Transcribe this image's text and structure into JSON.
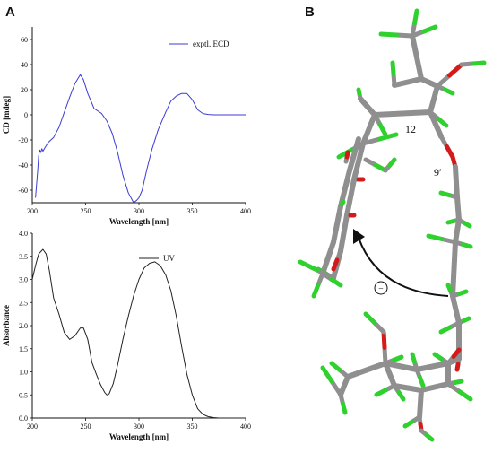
{
  "panel_labels": {
    "a": "A",
    "b": "B"
  },
  "chart_data": [
    {
      "type": "line",
      "xlabel": "Wavelength [nm]",
      "ylabel": "CD [mdeg]",
      "xlim": [
        200,
        400
      ],
      "ylim": [
        -70,
        70
      ],
      "xticks": [
        200,
        250,
        300,
        350,
        400
      ],
      "yticks": [
        -60,
        -40,
        -20,
        0,
        20,
        40,
        60
      ],
      "legend": "top-right",
      "series": [
        {
          "name": "exptl. ECD",
          "color": "#3b3bd6",
          "x": [
            203,
            205,
            206,
            207,
            208,
            209,
            210,
            212,
            215,
            220,
            225,
            230,
            235,
            240,
            245,
            248,
            252,
            258,
            265,
            270,
            275,
            280,
            285,
            290,
            295,
            298,
            300,
            303,
            307,
            312,
            318,
            325,
            330,
            335,
            340,
            345,
            350,
            355,
            360,
            365,
            370,
            380,
            390,
            400
          ],
          "y": [
            -66,
            -45,
            -33,
            -28,
            -30,
            -27,
            -29,
            -26,
            -22,
            -18,
            -10,
            2,
            14,
            25,
            32,
            28,
            17,
            5,
            1,
            -5,
            -15,
            -30,
            -48,
            -62,
            -70,
            -68,
            -66,
            -60,
            -45,
            -28,
            -12,
            2,
            11,
            15,
            17,
            17,
            12,
            4,
            1,
            0.3,
            0,
            0,
            0,
            0
          ]
        }
      ]
    },
    {
      "type": "line",
      "xlabel": "Wavelength [nm]",
      "ylabel": "Absorbance",
      "xlim": [
        200,
        400
      ],
      "ylim": [
        0,
        4
      ],
      "xticks": [
        200,
        250,
        300,
        350,
        400
      ],
      "yticks": [
        0.0,
        0.5,
        1.0,
        1.5,
        2.0,
        2.5,
        3.0,
        3.5,
        4.0
      ],
      "ytick_labels": [
        "0.0",
        "0.5",
        "1.0",
        "1.5",
        "2.0",
        "2.5",
        "3.0",
        "3.5",
        "4.0"
      ],
      "legend": "top-center",
      "series": [
        {
          "name": "UV",
          "color": "#222222",
          "x": [
            200,
            203,
            206,
            210,
            213,
            216,
            220,
            225,
            230,
            235,
            240,
            245,
            248,
            252,
            256,
            260,
            264,
            268,
            270,
            272,
            276,
            280,
            285,
            290,
            295,
            300,
            305,
            310,
            315,
            320,
            325,
            330,
            335,
            340,
            345,
            350,
            355,
            360,
            365,
            370,
            375,
            380,
            390,
            400
          ],
          "y": [
            3.0,
            3.3,
            3.55,
            3.65,
            3.55,
            3.2,
            2.6,
            2.25,
            1.85,
            1.7,
            1.78,
            1.95,
            1.95,
            1.7,
            1.2,
            0.95,
            0.72,
            0.55,
            0.5,
            0.52,
            0.75,
            1.15,
            1.7,
            2.2,
            2.65,
            3.0,
            3.25,
            3.35,
            3.38,
            3.3,
            3.1,
            2.75,
            2.2,
            1.55,
            0.95,
            0.5,
            0.2,
            0.08,
            0.03,
            0.01,
            0,
            0,
            0,
            0
          ]
        }
      ]
    }
  ],
  "molecule": {
    "labels": {
      "c12": "12",
      "c9p": "9′",
      "minus": "−"
    },
    "colors": {
      "carbon": "#8f8f8f",
      "oxygen": "#d41a1a",
      "hydrogen": "#2fd12f",
      "arrow": "#111111"
    }
  }
}
